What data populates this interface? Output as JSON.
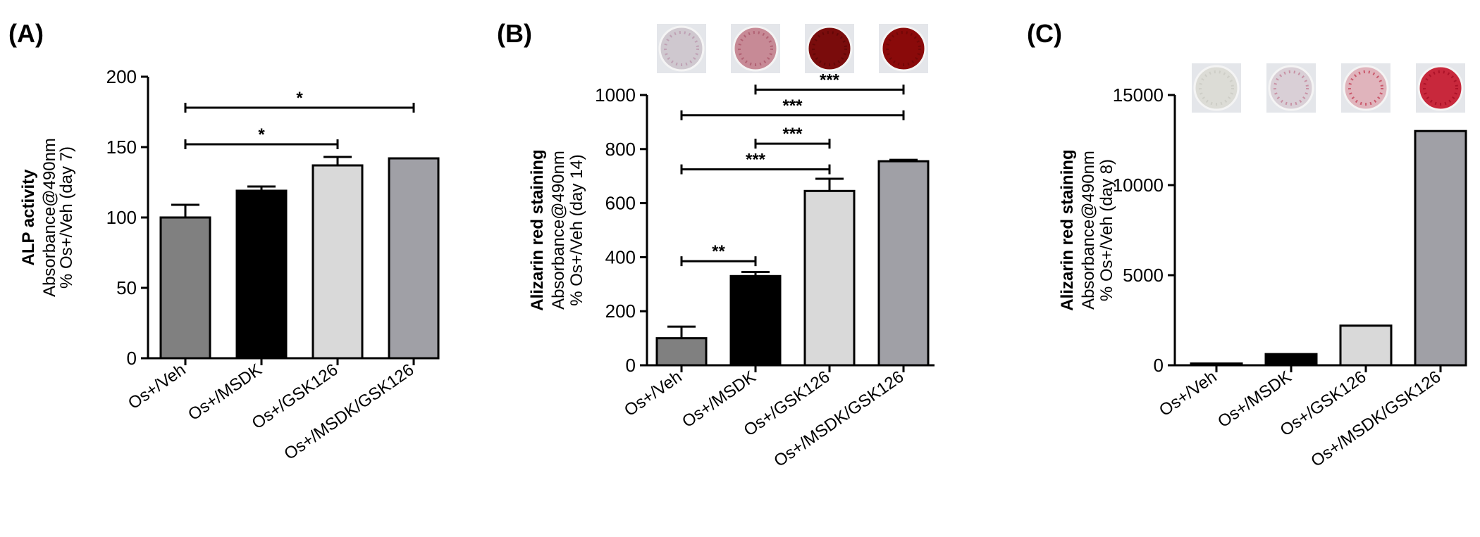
{
  "chart_data": [
    {
      "panel": "(A)",
      "type": "bar",
      "categories": [
        "Os+/Veh",
        "Os+/MSDK",
        "Os+/GSK126",
        "Os+/MSDK/GSK126"
      ],
      "values": [
        100,
        119,
        137,
        142
      ],
      "errors": [
        9,
        3,
        6,
        0
      ],
      "bar_colors": [
        "#808080",
        "#000000",
        "#d9d9d9",
        "#a0a0a6"
      ],
      "ylabel_bold": "ALP activity",
      "ylabel_lines": [
        "Absorbance@490nm",
        "% Os+/Veh (day 7)"
      ],
      "ylim": [
        0,
        200
      ],
      "yticks": [
        "0",
        "50",
        "100",
        "150",
        "200"
      ],
      "significance": [
        {
          "from": 0,
          "to": 2,
          "y": 152,
          "label": "*"
        },
        {
          "from": 0,
          "to": 3,
          "y": 178,
          "label": "*"
        }
      ],
      "well_images": []
    },
    {
      "panel": "(B)",
      "type": "bar",
      "categories": [
        "Os+/Veh",
        "Os+/MSDK",
        "Os+/GSK126",
        "Os+/MSDK/GSK126"
      ],
      "values": [
        100,
        330,
        645,
        755
      ],
      "errors": [
        43,
        15,
        45,
        5
      ],
      "bar_colors": [
        "#808080",
        "#000000",
        "#d9d9d9",
        "#a0a0a6"
      ],
      "ylabel_bold": "Alizarin red staining",
      "ylabel_lines": [
        "Absorbance@490nm",
        "% Os+/Veh (day 14)"
      ],
      "ylim": [
        0,
        1000
      ],
      "yticks": [
        "0",
        "200",
        "400",
        "600",
        "800",
        "1000"
      ],
      "significance": [
        {
          "from": 0,
          "to": 1,
          "y": 385,
          "label": "**"
        },
        {
          "from": 0,
          "to": 2,
          "y": 725,
          "label": "***"
        },
        {
          "from": 1,
          "to": 2,
          "y": 820,
          "label": "***"
        },
        {
          "from": 0,
          "to": 3,
          "y": 925,
          "label": "***"
        },
        {
          "from": 1,
          "to": 3,
          "y": 1020,
          "label": "***"
        }
      ],
      "well_images": [
        {
          "color": "#cfc8cf",
          "dot": "#b890a8"
        },
        {
          "color": "#c78a96",
          "dot": "#a85064"
        },
        {
          "color": "#7a0c0c",
          "dot": "#5a0606"
        },
        {
          "color": "#8a0a0a",
          "dot": "#6a0606"
        }
      ]
    },
    {
      "panel": "(C)",
      "type": "bar",
      "categories": [
        "Os+/Veh",
        "Os+/MSDK",
        "Os+/GSK126",
        "Os+/MSDK/GSK126"
      ],
      "values": [
        100,
        620,
        2200,
        13000
      ],
      "errors": [
        0,
        0,
        0,
        0
      ],
      "bar_colors": [
        "#808080",
        "#000000",
        "#d9d9d9",
        "#a0a0a6"
      ],
      "ylabel_bold": "Alizarin red staining",
      "ylabel_lines": [
        "Absorbance@490nm",
        "% Os+/Veh (day 8)"
      ],
      "ylim": [
        0,
        15000
      ],
      "yticks": [
        "0",
        "5000",
        "10000",
        "15000"
      ],
      "significance": [],
      "well_images": [
        {
          "color": "#dcdcd6",
          "dot": "#c8c8c0"
        },
        {
          "color": "#d9cfd6",
          "dot": "#c07890"
        },
        {
          "color": "#e0b4bc",
          "dot": "#c03048"
        },
        {
          "color": "#c8283c",
          "dot": "#a00820"
        }
      ]
    }
  ]
}
